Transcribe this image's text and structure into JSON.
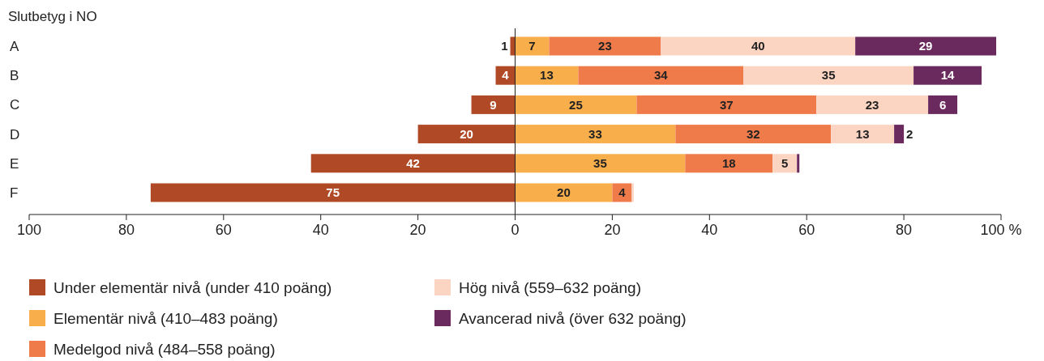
{
  "chart_data": {
    "type": "bar",
    "orientation": "horizontal",
    "stacked": true,
    "ylabel": "Slutbetyg i NO",
    "categories": [
      "A",
      "B",
      "C",
      "D",
      "E",
      "F"
    ],
    "xlim": [
      -100,
      100
    ],
    "xticks": [
      {
        "value": -100,
        "label": "100"
      },
      {
        "value": -80,
        "label": "80"
      },
      {
        "value": -60,
        "label": "60"
      },
      {
        "value": -40,
        "label": "40"
      },
      {
        "value": -20,
        "label": "20"
      },
      0,
      20,
      40,
      60,
      80,
      {
        "value": 100,
        "label": "100 %"
      }
    ],
    "series": [
      {
        "name": "Under elementär nivå (under 410 poäng)",
        "color": "#b04a26",
        "base": [
          -1,
          -4,
          -9,
          -20,
          -42,
          -75
        ],
        "values": [
          1,
          4,
          9,
          20,
          42,
          75
        ],
        "value_labels": [
          "1",
          "4",
          "9",
          "20",
          "42",
          "75"
        ]
      },
      {
        "name": "Elementär nivå (410–483 poäng)",
        "color": "#f7ae4b",
        "values": [
          7,
          13,
          25,
          33,
          35,
          20
        ],
        "value_labels": [
          "7",
          "13",
          "25",
          "33",
          "35",
          "20"
        ]
      },
      {
        "name": "Medelgod nivå (484–558 poäng)",
        "color": "#f07b4a",
        "values": [
          23,
          34,
          37,
          32,
          18,
          4
        ],
        "value_labels": [
          "23",
          "34",
          "37",
          "32",
          "18",
          "4"
        ]
      },
      {
        "name": "Hög nivå (559–632 poäng)",
        "color": "#fbd5c2",
        "values": [
          40,
          35,
          23,
          13,
          5,
          0.4
        ],
        "value_labels": [
          "40",
          "35",
          "23",
          "13",
          "5",
          null
        ]
      },
      {
        "name": "Avancerad nivå (över 632 poäng)",
        "color": "#6b2a5e",
        "values": [
          29,
          14,
          6,
          2,
          0.5,
          null
        ],
        "value_labels": [
          "29",
          "14",
          "6",
          "2",
          null,
          null
        ]
      }
    ],
    "ref_lines": [
      {
        "axis": "x",
        "value": 0
      }
    ],
    "grid": false,
    "legend": "bottom"
  }
}
